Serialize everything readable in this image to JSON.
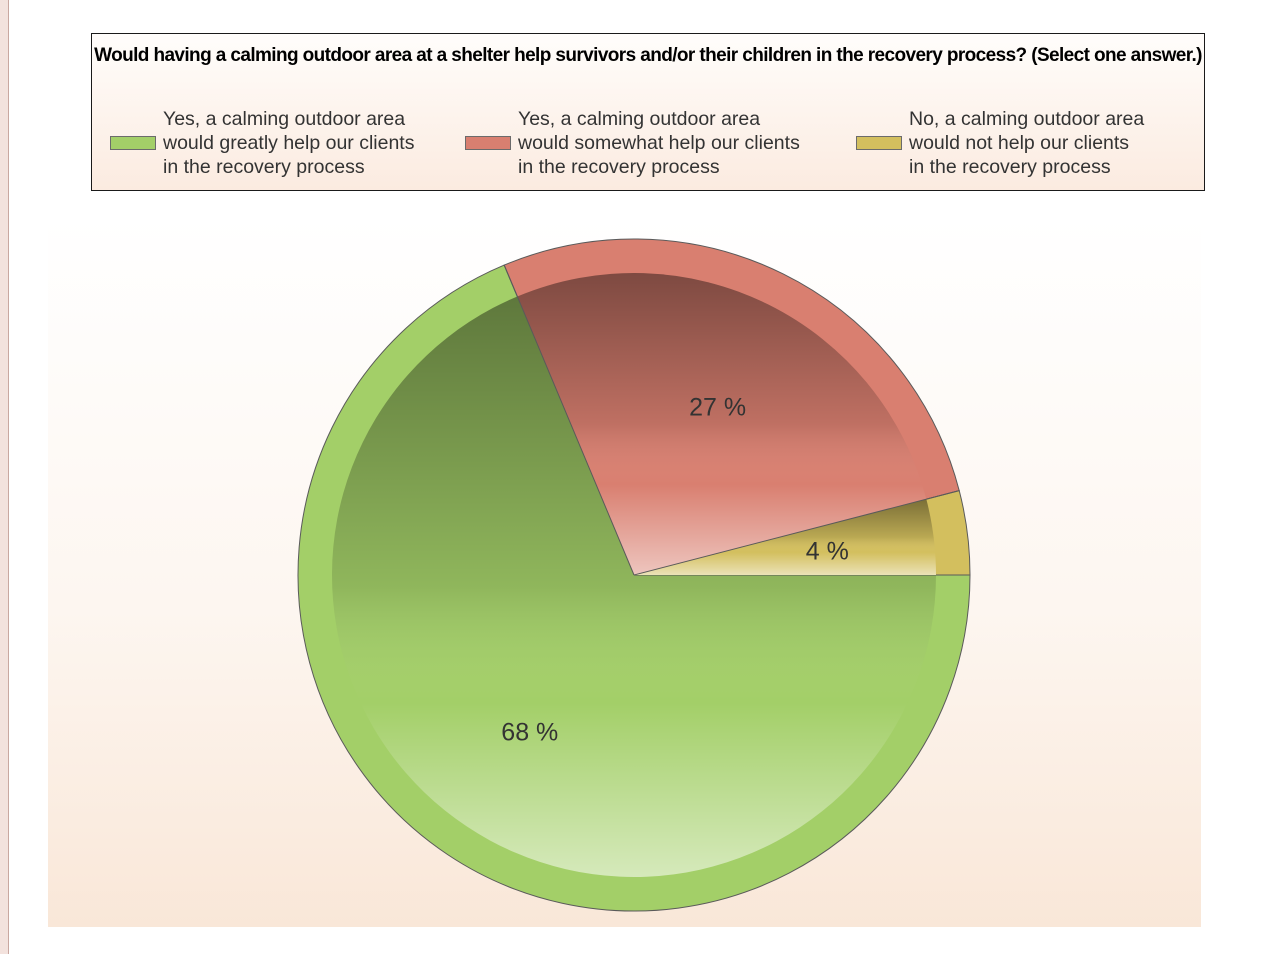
{
  "chart_data": {
    "type": "pie",
    "title": "Would having a calming outdoor area at a shelter help survivors and/or their children in the recovery process?  (Select one answer.)",
    "legend_position": "top",
    "slices": [
      {
        "label": "Yes, a calming outdoor area\nwould greatly help our clients\nin the recovery process",
        "value": 68,
        "value_label": "68 %",
        "color": "#a3cf68"
      },
      {
        "label": "Yes, a calming outdoor area\nwould somewhat help our clients\nin the recovery process",
        "value": 27,
        "value_label": "27 %",
        "color": "#d97f70"
      },
      {
        "label": "No, a calming outdoor area\nwould not help our clients\nin the recovery process",
        "value": 4,
        "value_label": "4 %",
        "color": "#d3bf5e"
      }
    ]
  }
}
